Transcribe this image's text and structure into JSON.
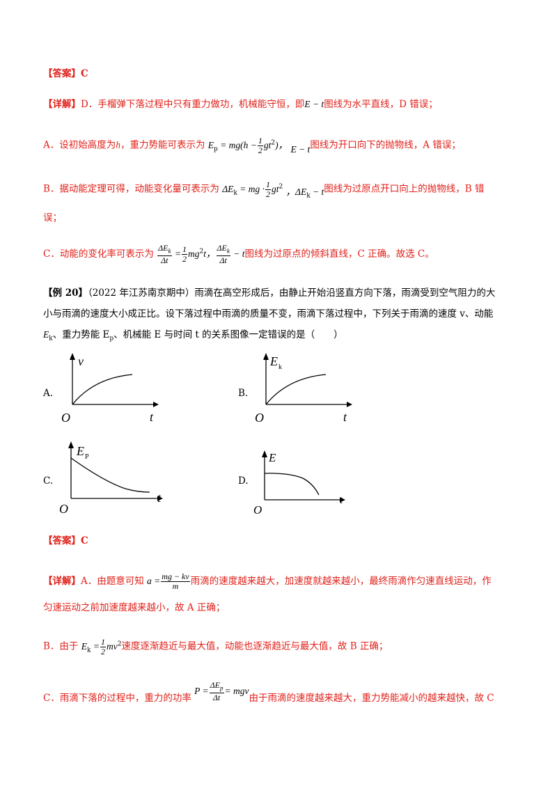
{
  "answer1": {
    "label": "【答案】",
    "value": "C"
  },
  "detail1": {
    "label": "【详解】",
    "d_text_a": "D．手榴弹下落过程中只有重力做功，机械能守恒，即",
    "d_math": "E − t",
    "d_text_b": "图线为水平直线，D 错误；",
    "a_text_a": "A．设初始高度为",
    "a_var_h": "h",
    "a_text_b": "，重力势能可表示为",
    "a_math_pre": "E",
    "a_math_sub": "p",
    "a_math_mid": " = mg(h −",
    "a_frac_num": "1",
    "a_frac_den": "2",
    "a_math_post": "gt",
    "a_math_sup": "2",
    "a_math_end": ")，",
    "a_math2": "E − t",
    "a_text_c": "图线为开口向下的抛物线，A 错误；",
    "b_text_a": "B．据动能定理可得，动能变化量可表示为",
    "b_math_pre": "ΔE",
    "b_math_sub": "k",
    "b_math_mid": " = mg ·",
    "b_frac_num": "1",
    "b_frac_den": "2",
    "b_math_post": "gt",
    "b_math_sup": "2",
    "b_math2_pre": "，ΔE",
    "b_math2_sub": "k",
    "b_math2_post": " − t",
    "b_text_b": "图线为过原点开口向上的抛物线，B 错",
    "b_text_c": "误；",
    "c_text_a": "C．动能的变化率可表示为",
    "c_frac1_num": "ΔE",
    "c_frac1_num_sub": "k",
    "c_frac1_den": "Δt",
    "c_eq": " =",
    "c_frac2_num": "1",
    "c_frac2_den": "2",
    "c_math_post": "mg",
    "c_math_sup": "2",
    "c_math_t": "t，",
    "c_frac3_num": "ΔE",
    "c_frac3_num_sub": "k",
    "c_frac3_den": "Δt",
    "c_math_t2": " − t",
    "c_text_b": "图线为过原点的倾斜直线，C 正确。故选 C。"
  },
  "example": {
    "label": "【例 20】",
    "line1": "（2022 年江苏南京期中）雨滴在高空形成后，由静止开始沿竖直方向下落，雨滴受到空气阻力的大",
    "line2": "小与雨滴的速度大小成正比。设下落过程中雨滴的质量不变，雨滴下落过程中，下列关于雨滴的速度 v、动能",
    "line3": "E",
    "line3_sub": "k",
    "line3_b": "、重力势能 E",
    "line3_sub2": "p",
    "line3_c": "、机械能 E 与时间 t 的关系图像一定错误的是（　　）"
  },
  "options": {
    "A": {
      "letter": "A.",
      "ylabel": "v",
      "ysub": "",
      "xlabel": "t",
      "origin": "O"
    },
    "B": {
      "letter": "B.",
      "ylabel": "E",
      "ysub": "k",
      "xlabel": "t",
      "origin": "O"
    },
    "C": {
      "letter": "C.",
      "ylabel": "E",
      "ysub": "P",
      "xlabel": "t",
      "origin": "O"
    },
    "D": {
      "letter": "D.",
      "ylabel": "E",
      "ysub": "",
      "xlabel": "t",
      "origin": "O"
    }
  },
  "answer2": {
    "label": "【答案】",
    "value": "C"
  },
  "detail2": {
    "label": "【详解】",
    "a_text_a": "A．由题意可知",
    "a_lhs": "a =",
    "a_num": "mg − kv",
    "a_den": "m",
    "a_text_b": "雨滴的速度越来越大，加速度就越来越小，最终雨滴作匀速直线运动，作",
    "a_text_c": "匀速运动之前加速度越来越小，故 A 正确；",
    "b_text_a": "B．由于",
    "b_lhs": "E",
    "b_lhs_sub": "k",
    "b_eq": " =",
    "b_num": "1",
    "b_den": "2",
    "b_post": "mv",
    "b_sup": "2",
    "b_text_b": "速度逐渐趋近与最大值，动能也逐渐趋近与最大值，故 B 正确；",
    "c_text_a": "C．雨滴下落的过程中，重力的功率",
    "c_lhs": "P =",
    "c_num": "ΔE",
    "c_num_sub": "p",
    "c_den": "Δt",
    "c_post": "= mgv",
    "c_text_b": "由于雨滴的速度越来越大，重力势能减小的越来越快，故 C"
  }
}
